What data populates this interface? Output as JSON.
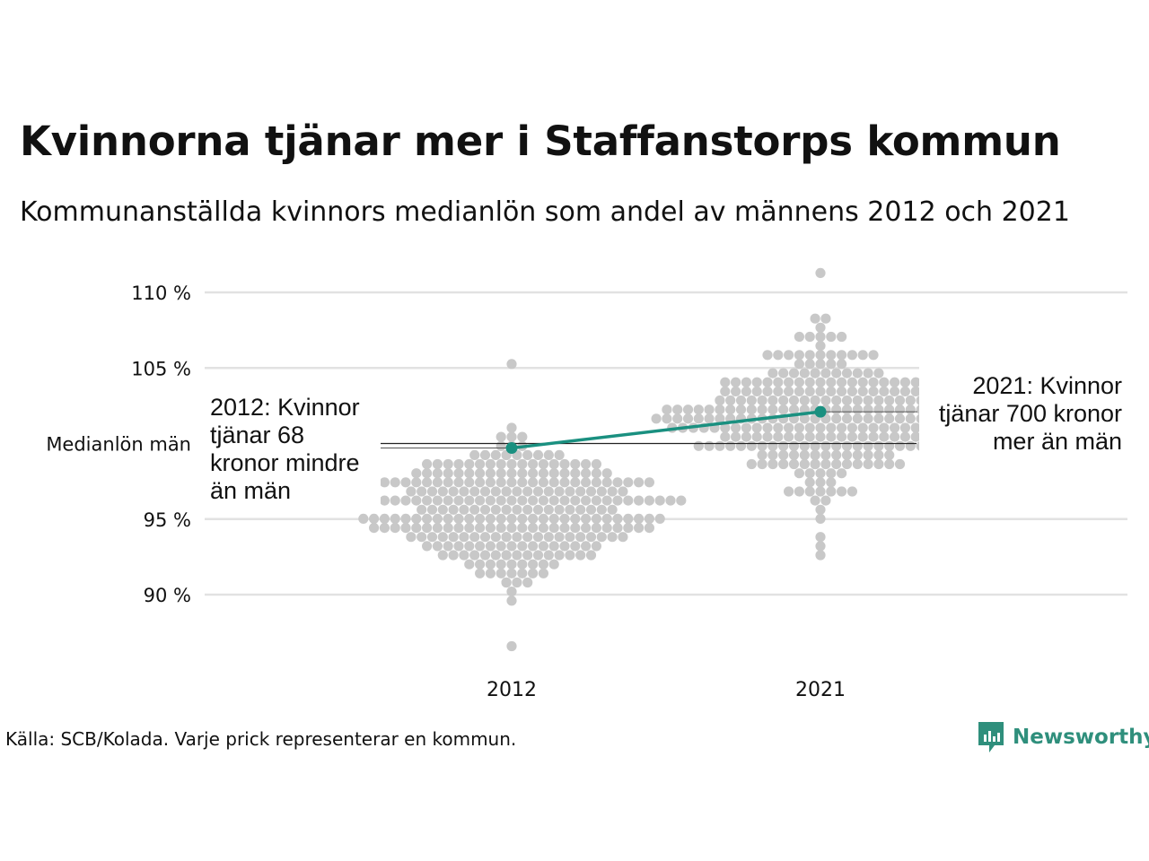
{
  "title": "Kvinnorna tjänar mer i Staffanstorps kommun",
  "subtitle": "Kommunanställda kvinnors medianlön som andel av männens 2012 och 2021",
  "source": "Källa: SCB/Kolada. Varje prick representerar en kommun.",
  "brand": {
    "name": "Newsworthy",
    "icon": "newsworthy-logo-icon",
    "color": "#2f8f7c"
  },
  "colors": {
    "highlight": "#1a9080",
    "dots": "#c8c8c8",
    "grid": "#e2e2e2"
  },
  "chart_data": {
    "type": "scatter",
    "title": "Kvinnorna tjänar mer i Staffanstorps kommun",
    "subtitle": "Kommunanställda kvinnors medianlön som andel av männens 2012 och 2021",
    "categories": [
      "2012",
      "2021"
    ],
    "y_ticks": [
      {
        "value": 90,
        "label": "90 %"
      },
      {
        "value": 95,
        "label": "95 %"
      },
      {
        "value": 100,
        "label": "Medianlön män"
      },
      {
        "value": 105,
        "label": "105 %"
      },
      {
        "value": 110,
        "label": "110 %"
      }
    ],
    "ylim": [
      86,
      111.5
    ],
    "grid": true,
    "reference_line": {
      "value": 100,
      "label": "Medianlön män"
    },
    "highlight": {
      "name": "Staffanstorps kommun",
      "points": [
        {
          "x": "2012",
          "y": 99.7
        },
        {
          "x": "2021",
          "y": 102.1
        }
      ]
    },
    "distributions": [
      {
        "x": "2012",
        "count": 290,
        "min": 86.6,
        "max": 105.2,
        "center": 95.5,
        "spread": 2.3
      },
      {
        "x": "2021",
        "count": 290,
        "min": 92.5,
        "max": 111.2,
        "center": 101.8,
        "spread": 2.4
      }
    ],
    "annotations": [
      {
        "x": "2012",
        "lines": [
          "2012: Kvinnor",
          "tjänar 68",
          "kronor mindre",
          "än män"
        ]
      },
      {
        "x": "2021",
        "lines": [
          "2021: Kvinnor",
          "tjänar 700 kronor",
          "mer än män"
        ]
      }
    ]
  }
}
